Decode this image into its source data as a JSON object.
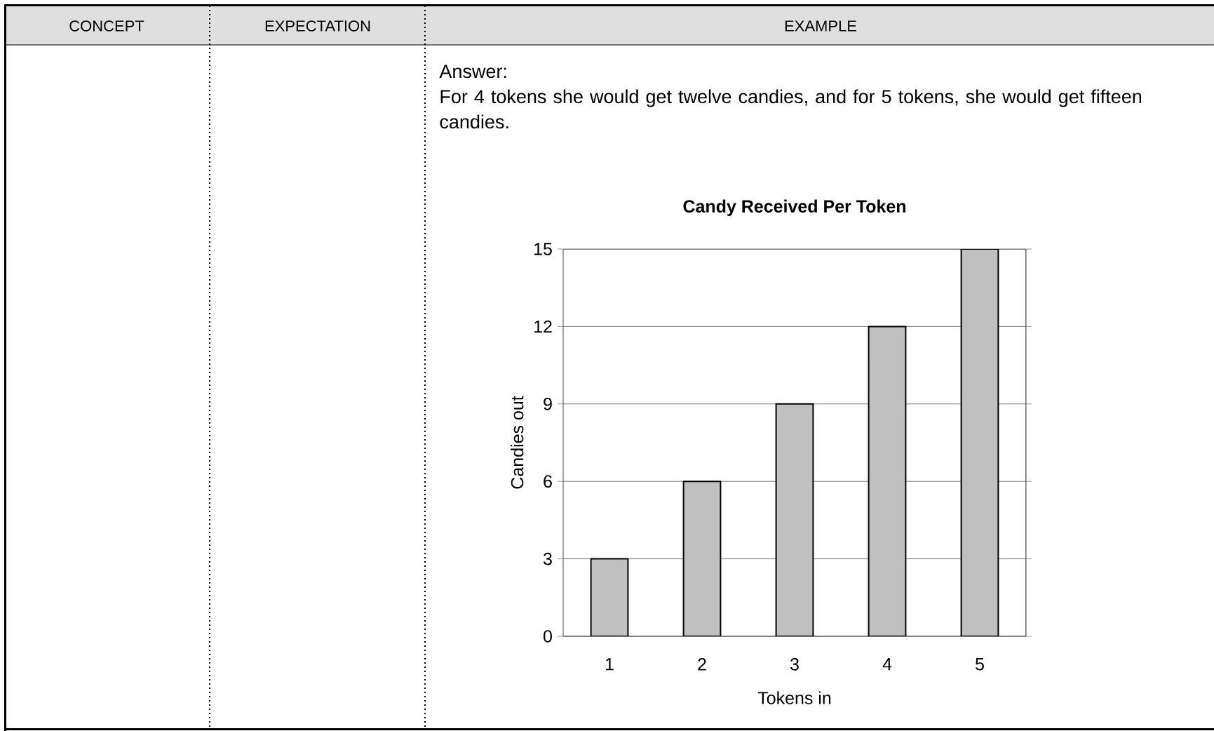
{
  "chart_data": {
    "type": "bar",
    "title": "Candy Received Per Token",
    "xlabel": "Tokens in",
    "ylabel": "Candies out",
    "categories": [
      "1",
      "2",
      "3",
      "4",
      "5"
    ],
    "values": [
      3,
      6,
      9,
      12,
      15
    ],
    "color": "#c0c0c0",
    "ylim": [
      0,
      15
    ],
    "yticks": [
      0,
      3,
      6,
      9,
      12,
      15
    ],
    "grid": "y",
    "annotations": [
      "CONCEPT",
      "EXPECTATION",
      "EXAMPLE",
      "Answer:",
      "For 4 tokens she would get twelve candies, and for 5 tokens, she would get fifteen candies."
    ]
  }
}
